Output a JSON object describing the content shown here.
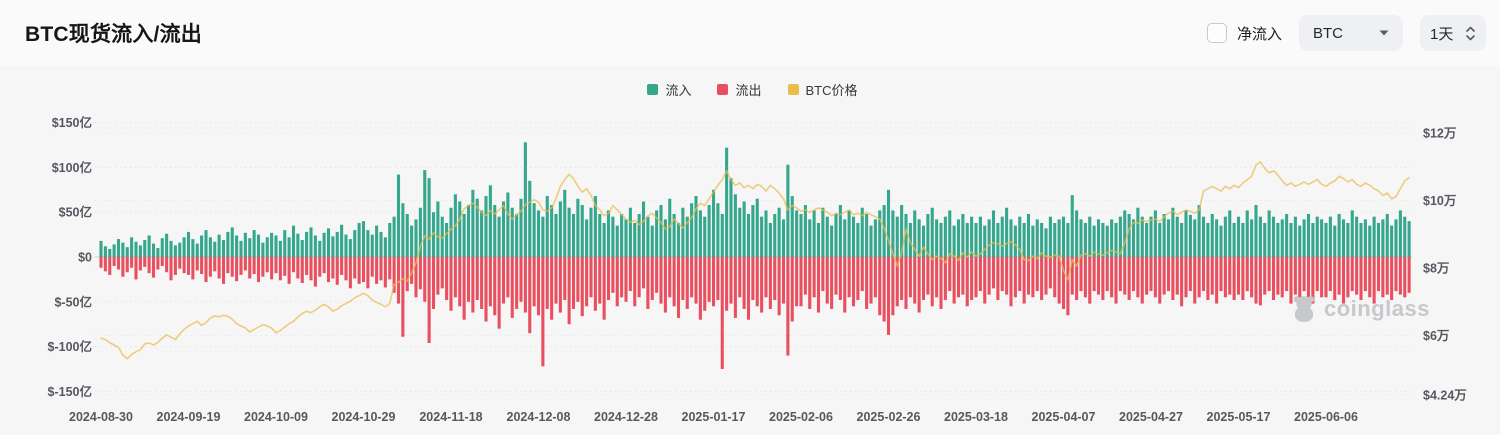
{
  "header": {
    "title": "BTC现货流入/流出"
  },
  "controls": {
    "net_inflow": {
      "label": "净流入",
      "checked": false
    },
    "symbol_select": {
      "value": "BTC"
    },
    "interval_select": {
      "value": "1天"
    }
  },
  "legend": [
    {
      "label": "流入",
      "color": "#34A78D"
    },
    {
      "label": "流出",
      "color": "#E9505F"
    },
    {
      "label": "BTC价格",
      "color": "#EABB4D"
    }
  ],
  "watermark": {
    "text": "coinglass"
  },
  "chart_data": {
    "type": "bar",
    "title": "BTC现货流入/流出",
    "x_start_date": "2024-08-30",
    "x_interval_days": 1,
    "x_tick_every_days": 20,
    "x_tick_labels": [
      "2024-08-30",
      "2024-09-19",
      "2024-10-09",
      "2024-10-29",
      "2024-11-18",
      "2024-12-08",
      "2024-12-28",
      "2025-01-17",
      "2025-02-06",
      "2025-02-26",
      "2025-03-18",
      "2025-04-07",
      "2025-04-27",
      "2025-05-17",
      "2025-06-06"
    ],
    "left_axis": {
      "unit": "亿美元",
      "tick_labels": [
        "$150亿",
        "$100亿",
        "$50亿",
        "$0",
        "$-50亿",
        "$-100亿",
        "$-150亿"
      ],
      "tick_values": [
        150,
        100,
        50,
        0,
        -50,
        -100,
        -150
      ],
      "range": [
        -175,
        175
      ]
    },
    "right_axis": {
      "unit": "万美元",
      "tick_labels": [
        "$12万",
        "$10万",
        "$8万",
        "$6万",
        "$4.24万"
      ],
      "tick_values": [
        12,
        10,
        8,
        6,
        4.24
      ],
      "range": [
        4.24,
        12.95
      ]
    },
    "grid": "dotted-horizontal",
    "legend_position": "top-center",
    "series": [
      {
        "name": "流入",
        "type": "bar",
        "axis": "left",
        "color": "#34A78D",
        "values": [
          18,
          12,
          9,
          14,
          20,
          16,
          11,
          22,
          17,
          13,
          19,
          24,
          15,
          10,
          21,
          26,
          18,
          13,
          16,
          22,
          28,
          20,
          15,
          24,
          30,
          22,
          17,
          25,
          19,
          28,
          33,
          24,
          18,
          27,
          21,
          30,
          25,
          16,
          22,
          27,
          24,
          18,
          30,
          22,
          35,
          26,
          19,
          28,
          33,
          24,
          18,
          27,
          32,
          23,
          28,
          36,
          25,
          20,
          30,
          38,
          40,
          30,
          25,
          35,
          28,
          22,
          38,
          45,
          92,
          60,
          48,
          35,
          42,
          55,
          97,
          88,
          50,
          62,
          45,
          38,
          55,
          70,
          62,
          48,
          58,
          75,
          65,
          52,
          68,
          80,
          58,
          45,
          62,
          72,
          55,
          48,
          65,
          128,
          85,
          60,
          52,
          45,
          68,
          58,
          48,
          62,
          75,
          55,
          48,
          65,
          58,
          42,
          55,
          68,
          48,
          38,
          52,
          45,
          35,
          48,
          42,
          55,
          38,
          48,
          62,
          45,
          35,
          52,
          58,
          42,
          65,
          48,
          38,
          55,
          45,
          60,
          68,
          52,
          45,
          58,
          75,
          60,
          48,
          122,
          88,
          70,
          55,
          62,
          48,
          58,
          65,
          45,
          52,
          38,
          48,
          55,
          42,
          103,
          68,
          52,
          48,
          58,
          42,
          52,
          38,
          55,
          45,
          35,
          48,
          58,
          42,
          52,
          45,
          38,
          55,
          48,
          35,
          42,
          52,
          58,
          75,
          52,
          45,
          58,
          48,
          38,
          52,
          42,
          35,
          48,
          55,
          42,
          38,
          45,
          52,
          35,
          42,
          48,
          38,
          45,
          38,
          45,
          35,
          42,
          52,
          38,
          45,
          55,
          42,
          35,
          45,
          38,
          48,
          35,
          42,
          38,
          32,
          45,
          38,
          42,
          45,
          38,
          69,
          52,
          42,
          38,
          45,
          35,
          42,
          38,
          35,
          42,
          38,
          45,
          52,
          48,
          42,
          55,
          45,
          38,
          45,
          52,
          38,
          48,
          42,
          55,
          45,
          38,
          52,
          47,
          42,
          58,
          45,
          38,
          48,
          42,
          35,
          45,
          52,
          38,
          45,
          38,
          52,
          42,
          58,
          45,
          38,
          52,
          45,
          38,
          42,
          48,
          38,
          45,
          35,
          42,
          48,
          38,
          45,
          42,
          38,
          45,
          35,
          48,
          42,
          38,
          52,
          45,
          38,
          42,
          35,
          45,
          38,
          42,
          48,
          35,
          42,
          52,
          45,
          40
        ]
      },
      {
        "name": "流出",
        "type": "bar",
        "axis": "left",
        "color": "#E9505F",
        "values": [
          -12,
          -16,
          -20,
          -10,
          -14,
          -22,
          -17,
          -12,
          -25,
          -15,
          -11,
          -18,
          -23,
          -14,
          -10,
          -17,
          -26,
          -20,
          -13,
          -18,
          -20,
          -25,
          -15,
          -19,
          -28,
          -22,
          -16,
          -24,
          -30,
          -18,
          -22,
          -27,
          -20,
          -15,
          -24,
          -19,
          -28,
          -22,
          -17,
          -25,
          -18,
          -26,
          -21,
          -30,
          -17,
          -24,
          -29,
          -20,
          -26,
          -33,
          -22,
          -18,
          -28,
          -24,
          -31,
          -20,
          -26,
          -35,
          -24,
          -30,
          -28,
          -35,
          -22,
          -30,
          -26,
          -34,
          -25,
          -40,
          -52,
          -89,
          -38,
          -30,
          -45,
          -36,
          -50,
          -96,
          -58,
          -42,
          -35,
          -48,
          -60,
          -45,
          -55,
          -70,
          -50,
          -62,
          -48,
          -58,
          -72,
          -55,
          -65,
          -80,
          -52,
          -45,
          -68,
          -58,
          -50,
          -62,
          -85,
          -55,
          -65,
          -122,
          -58,
          -70,
          -52,
          -62,
          -48,
          -75,
          -58,
          -50,
          -66,
          -55,
          -45,
          -60,
          -52,
          -70,
          -48,
          -40,
          -55,
          -45,
          -50,
          -38,
          -55,
          -45,
          -35,
          -58,
          -48,
          -40,
          -52,
          -62,
          -45,
          -55,
          -68,
          -48,
          -58,
          -45,
          -52,
          -70,
          -60,
          -50,
          -55,
          -48,
          -125,
          -60,
          -52,
          -68,
          -45,
          -58,
          -70,
          -48,
          -55,
          -62,
          -45,
          -58,
          -48,
          -65,
          -52,
          -110,
          -72,
          -55,
          -55,
          -42,
          -58,
          -45,
          -62,
          -38,
          -52,
          -58,
          -42,
          -48,
          -62,
          -45,
          -55,
          -48,
          -38,
          -58,
          -52,
          -45,
          -65,
          -72,
          -87,
          -65,
          -55,
          -48,
          -58,
          -45,
          -52,
          -62,
          -48,
          -42,
          -55,
          -45,
          -58,
          -48,
          -38,
          -52,
          -45,
          -42,
          -55,
          -48,
          -45,
          -38,
          -52,
          -42,
          -35,
          -48,
          -38,
          -42,
          -55,
          -45,
          -38,
          -52,
          -42,
          -45,
          -38,
          -48,
          -42,
          -35,
          -45,
          -52,
          -58,
          -65,
          -42,
          -48,
          -38,
          -45,
          -52,
          -38,
          -42,
          -48,
          -38,
          -45,
          -52,
          -38,
          -42,
          -48,
          -38,
          -45,
          -52,
          -42,
          -38,
          -45,
          -52,
          -42,
          -38,
          -48,
          -42,
          -55,
          -45,
          -38,
          -52,
          -45,
          -38,
          -48,
          -42,
          -52,
          -38,
          -45,
          -42,
          -48,
          -42,
          -48,
          -38,
          -45,
          -52,
          -54,
          -42,
          -38,
          -48,
          -42,
          -45,
          -38,
          -52,
          -42,
          -48,
          -38,
          -45,
          -52,
          -38,
          -45,
          -45,
          -38,
          -48,
          -42,
          -52,
          -45,
          -38,
          -42,
          -48,
          -38,
          -45,
          -52,
          -38,
          -45,
          -42,
          -48,
          -38,
          -42,
          -45,
          -40
        ]
      },
      {
        "name": "BTC价格",
        "type": "line",
        "axis": "right",
        "color": "#EABB4D",
        "values": [
          5.92,
          5.88,
          5.78,
          5.72,
          5.65,
          5.42,
          5.31,
          5.44,
          5.52,
          5.58,
          5.75,
          5.78,
          5.72,
          5.8,
          5.92,
          6.02,
          5.95,
          5.88,
          6.05,
          6.18,
          6.28,
          6.35,
          6.42,
          6.3,
          6.38,
          6.52,
          6.58,
          6.55,
          6.6,
          6.57,
          6.48,
          6.35,
          6.28,
          6.22,
          6.1,
          6.18,
          6.25,
          6.32,
          6.28,
          6.22,
          6.08,
          6.15,
          6.25,
          6.35,
          6.42,
          6.55,
          6.65,
          6.72,
          6.68,
          6.75,
          6.85,
          6.92,
          6.85,
          6.72,
          6.78,
          6.88,
          6.95,
          7.02,
          7.12,
          7.18,
          7.25,
          7.18,
          7.05,
          6.98,
          6.92,
          6.85,
          6.95,
          7.52,
          7.58,
          7.68,
          7.62,
          7.85,
          8.15,
          8.65,
          8.95,
          8.85,
          9.05,
          8.92,
          8.88,
          9.02,
          9.15,
          9.25,
          9.45,
          9.75,
          9.85,
          9.92,
          9.8,
          9.65,
          9.55,
          9.7,
          9.6,
          9.72,
          9.85,
          9.6,
          9.45,
          9.58,
          9.68,
          9.88,
          9.95,
          10.02,
          9.95,
          9.72,
          9.68,
          9.78,
          10.05,
          10.42,
          10.62,
          10.78,
          10.65,
          10.42,
          10.25,
          10.35,
          10.15,
          9.85,
          9.72,
          9.55,
          9.62,
          9.85,
          9.72,
          9.58,
          9.45,
          9.35,
          9.42,
          9.28,
          9.38,
          9.55,
          9.62,
          9.48,
          9.35,
          9.15,
          9.22,
          9.45,
          9.32,
          9.18,
          9.35,
          9.48,
          9.75,
          9.92,
          9.85,
          10.05,
          10.25,
          10.45,
          10.62,
          10.88,
          10.62,
          10.45,
          10.52,
          10.38,
          10.45,
          10.35,
          10.48,
          10.42,
          10.28,
          10.45,
          10.35,
          10.22,
          10.05,
          9.72,
          9.85,
          9.78,
          9.68,
          9.72,
          9.65,
          9.72,
          9.78,
          9.72,
          9.65,
          9.55,
          9.62,
          9.58,
          9.65,
          9.72,
          9.58,
          9.62,
          9.55,
          9.65,
          9.58,
          9.52,
          9.45,
          9.18,
          8.82,
          8.42,
          8.05,
          8.45,
          9.15,
          8.75,
          8.55,
          8.35,
          8.62,
          8.42,
          8.25,
          8.35,
          8.28,
          8.15,
          8.42,
          8.35,
          8.22,
          8.45,
          8.32,
          8.48,
          8.35,
          8.42,
          8.55,
          8.68,
          8.75,
          8.72,
          8.65,
          8.72,
          8.78,
          8.68,
          8.55,
          8.25,
          8.22,
          8.35,
          8.28,
          8.45,
          8.35,
          8.32,
          8.38,
          8.35,
          7.92,
          7.65,
          8.25,
          8.05,
          8.38,
          8.42,
          8.35,
          8.48,
          8.42,
          8.38,
          8.45,
          8.52,
          8.48,
          8.42,
          8.75,
          9.15,
          9.35,
          9.32,
          9.42,
          9.38,
          9.42,
          9.45,
          9.38,
          9.52,
          9.62,
          9.68,
          9.58,
          9.65,
          9.72,
          9.68,
          9.62,
          9.72,
          10.28,
          10.35,
          10.42,
          10.35,
          10.28,
          10.42,
          10.35,
          10.45,
          10.38,
          10.52,
          10.62,
          10.72,
          11.05,
          11.15,
          10.95,
          10.82,
          10.88,
          10.75,
          10.58,
          10.45,
          10.52,
          10.42,
          10.48,
          10.55,
          10.48,
          10.55,
          10.62,
          10.48,
          10.42,
          10.52,
          10.58,
          10.72,
          10.65,
          10.55,
          10.62,
          10.48,
          10.42,
          10.52,
          10.45,
          10.35,
          10.28,
          10.15,
          10.22,
          10.05,
          10.12,
          10.35,
          10.58,
          10.68
        ]
      }
    ]
  }
}
